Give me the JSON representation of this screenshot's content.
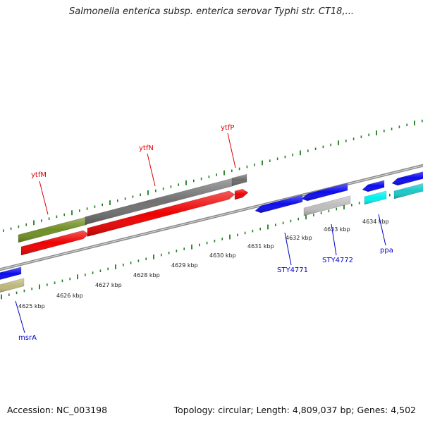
{
  "title": "Salmonella enterica subsp. enterica serovar Typhi str. CT18,...",
  "footer": {
    "accession": "Accession: NC_003198",
    "summary": "Topology: circular; Length: 4,809,037 bp; Genes: 4,502"
  },
  "colors": {
    "tick": "#1e7d1e",
    "backbone": "#8a8a8a",
    "label_red": "#e00000",
    "label_blue": "#0000c8"
  },
  "ticks": [
    {
      "label": "4625 kbp"
    },
    {
      "label": "4626 kbp"
    },
    {
      "label": "4627 kbp"
    },
    {
      "label": "4628 kbp"
    },
    {
      "label": "4629 kbp"
    },
    {
      "label": "4630 kbp"
    },
    {
      "label": "4631 kbp"
    },
    {
      "label": "4632 kbp"
    },
    {
      "label": "4633 kbp"
    },
    {
      "label": "4634 kbp"
    }
  ],
  "gene_labels": [
    {
      "text": "ytfM",
      "color": "#e00000"
    },
    {
      "text": "ytfN",
      "color": "#e00000"
    },
    {
      "text": "ytfP",
      "color": "#e00000"
    },
    {
      "text": "STY4771",
      "color": "#0000c8"
    },
    {
      "text": "STY4772",
      "color": "#0000c8"
    },
    {
      "text": "ppa",
      "color": "#0000c8"
    },
    {
      "text": "msrA",
      "color": "#0000c8"
    }
  ],
  "features": [
    {
      "name": "ytfM-gene",
      "color": "#6f8f23"
    },
    {
      "name": "ytfN-gene",
      "color": "#707070"
    },
    {
      "name": "ytfP-gene",
      "color": "#6a6a6a"
    },
    {
      "name": "ytfM-cds",
      "color": "#ee0000"
    },
    {
      "name": "ytfN-cds",
      "color": "#ee0000"
    },
    {
      "name": "ytfP-cds",
      "color": "#ee0000"
    },
    {
      "name": "STY4771-gene",
      "color": "#0a0aee"
    },
    {
      "name": "STY4772-gene",
      "color": "#0a0aee"
    },
    {
      "name": "STY4772-cds",
      "color": "#bdbdbd"
    },
    {
      "name": "ppa-gene",
      "color": "#0a0aee"
    },
    {
      "name": "ppa-cds",
      "color": "#00f0f0"
    },
    {
      "name": "right-gene",
      "color": "#0a0aee"
    },
    {
      "name": "right-cds",
      "color": "#1ac8c8"
    },
    {
      "name": "msrA-gene",
      "color": "#0a0aee"
    },
    {
      "name": "msrA-cds",
      "color": "#bdb77a"
    }
  ]
}
